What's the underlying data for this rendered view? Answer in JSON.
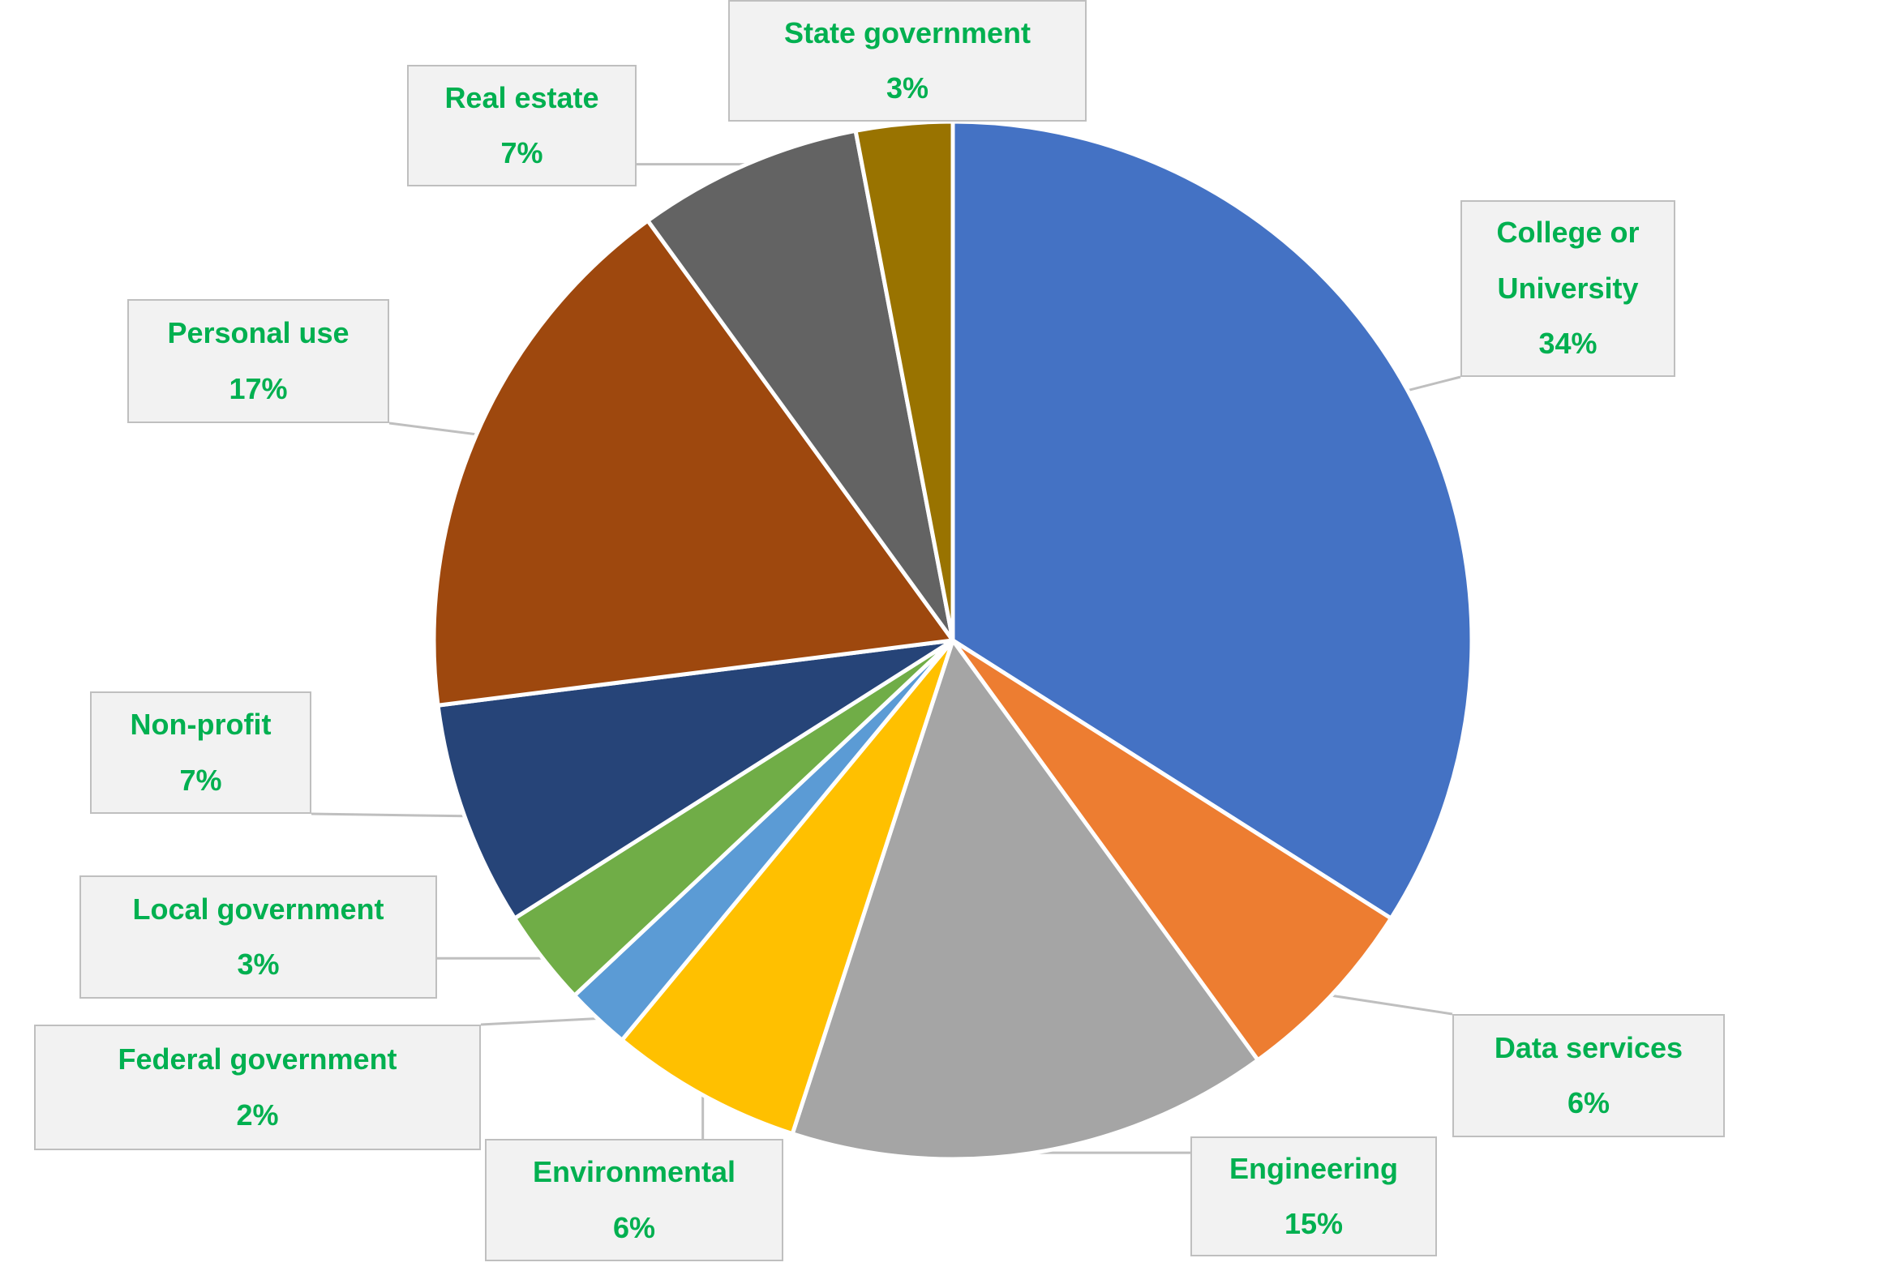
{
  "chart_data": {
    "type": "pie",
    "title": "",
    "start": "top, clockwise",
    "label_color": "#00B050",
    "slices": [
      {
        "label": "College or University",
        "label_lines": [
          "College or",
          "University"
        ],
        "value": 34,
        "pct": "34%",
        "color": "#4472C4"
      },
      {
        "label": "Data services",
        "label_lines": [
          "Data services"
        ],
        "value": 6,
        "pct": "6%",
        "color": "#ED7D31"
      },
      {
        "label": "Engineering",
        "label_lines": [
          "Engineering"
        ],
        "value": 15,
        "pct": "15%",
        "color": "#A5A5A5"
      },
      {
        "label": "Environmental",
        "label_lines": [
          "Environmental"
        ],
        "value": 6,
        "pct": "6%",
        "color": "#FFC000"
      },
      {
        "label": "Federal government",
        "label_lines": [
          "Federal government"
        ],
        "value": 2,
        "pct": "2%",
        "color": "#5B9BD5"
      },
      {
        "label": "Local government",
        "label_lines": [
          "Local government"
        ],
        "value": 3,
        "pct": "3%",
        "color": "#70AD47"
      },
      {
        "label": "Non-profit",
        "label_lines": [
          "Non-profit"
        ],
        "value": 7,
        "pct": "7%",
        "color": "#264478"
      },
      {
        "label": "Personal use",
        "label_lines": [
          "Personal use"
        ],
        "value": 17,
        "pct": "17%",
        "color": "#9E480E"
      },
      {
        "label": "Real estate",
        "label_lines": [
          "Real estate"
        ],
        "value": 7,
        "pct": "7%",
        "color": "#636363"
      },
      {
        "label": "State government",
        "label_lines": [
          "State government"
        ],
        "value": 3,
        "pct": "3%",
        "color": "#997300"
      }
    ]
  }
}
